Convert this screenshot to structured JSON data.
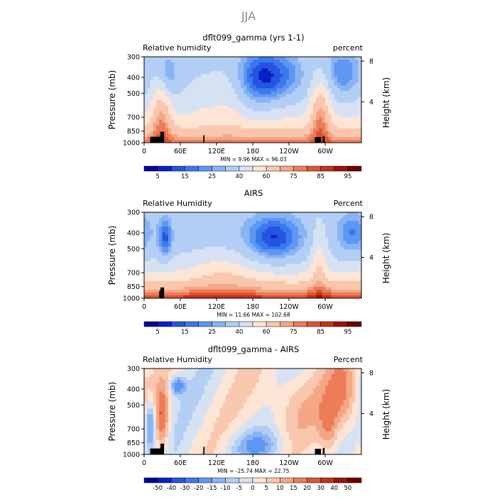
{
  "figure": {
    "title": "JJA"
  },
  "colors": {
    "land_mask": "#000000",
    "rh_levels": [
      "#08009a",
      "#0a1fc8",
      "#2455e0",
      "#3a78ee",
      "#5e97f2",
      "#89b4f4",
      "#b2cef5",
      "#d6e2f3",
      "#fde5d6",
      "#f9c7ad",
      "#f3a786",
      "#ec7d58",
      "#dc5433",
      "#c43118",
      "#a01006",
      "#6e0000"
    ],
    "diff_levels": [
      "#08009a",
      "#0a1fc8",
      "#2455e0",
      "#3a78ee",
      "#5e97f2",
      "#89b4f4",
      "#b2cef5",
      "#d6e2f3",
      "#fde5d6",
      "#f9c7ad",
      "#f3a786",
      "#ec7d58",
      "#dc5433",
      "#c43118",
      "#a01006",
      "#6e0000"
    ]
  },
  "chart_data": [
    {
      "type": "heatmap",
      "title": "dflt099_gamma (yrs 1-1)",
      "left_label": "Relative humidity",
      "right_label": "percent",
      "ylabel": "Pressure (mb)",
      "ylabel2": "Height (km)",
      "yticks": [
        "300",
        "400",
        "500",
        "700",
        "850",
        "1000"
      ],
      "ytick_values": [
        300,
        400,
        500,
        700,
        850,
        1000
      ],
      "yticks2": [
        "8",
        "4"
      ],
      "ytick2_values": [
        8,
        4
      ],
      "xticks": [
        "0",
        "60E",
        "120E",
        "180",
        "120W",
        "60W"
      ],
      "xtick_values": [
        0,
        60,
        120,
        180,
        240,
        300
      ],
      "xlim": [
        0,
        360
      ],
      "ylim": [
        1000,
        300
      ],
      "stats": "MIN =    9.96   MAX =   96.03",
      "colorbar_labels": [
        "5",
        "15",
        "25",
        "40",
        "60",
        "75",
        "85",
        "95"
      ],
      "colorbar_levels": [
        "rh"
      ]
    },
    {
      "type": "heatmap",
      "title": "AIRS",
      "left_label": "Relative Humidity",
      "right_label": "Percent",
      "ylabel": "Pressure (mb)",
      "ylabel2": "Height (km)",
      "yticks": [
        "300",
        "400",
        "500",
        "700",
        "850",
        "1000"
      ],
      "ytick_values": [
        300,
        400,
        500,
        700,
        850,
        1000
      ],
      "yticks2": [
        "8",
        "4"
      ],
      "ytick2_values": [
        8,
        4
      ],
      "xticks": [
        "0",
        "60E",
        "120E",
        "180",
        "120W",
        "60W"
      ],
      "xtick_values": [
        0,
        60,
        120,
        180,
        240,
        300
      ],
      "xlim": [
        0,
        360
      ],
      "ylim": [
        1000,
        300
      ],
      "stats": "MIN =   11.66   MAX = 102.68",
      "colorbar_labels": [
        "5",
        "15",
        "25",
        "40",
        "60",
        "75",
        "85",
        "95"
      ],
      "colorbar_levels": [
        "rh"
      ]
    },
    {
      "type": "heatmap",
      "title": "dflt099_gamma - AIRS",
      "left_label": "Relative Humidity",
      "right_label": "Percent",
      "ylabel": "Pressure (mb)",
      "ylabel2": "Height (km)",
      "yticks": [
        "300",
        "400",
        "500",
        "700",
        "850",
        "1000"
      ],
      "ytick_values": [
        300,
        400,
        500,
        700,
        850,
        1000
      ],
      "yticks2": [
        "8",
        "4"
      ],
      "ytick2_values": [
        8,
        4
      ],
      "xticks": [
        "0",
        "60E",
        "120E",
        "180",
        "120W",
        "60W"
      ],
      "xtick_values": [
        0,
        60,
        120,
        180,
        240,
        300
      ],
      "xlim": [
        0,
        360
      ],
      "ylim": [
        1000,
        300
      ],
      "stats": "MIN =  -25.74   MAX =    22.75",
      "colorbar_labels": [
        "-50",
        "-40",
        "-30",
        "-20",
        "-15",
        "-10",
        "-5",
        "0",
        "5",
        "10",
        "15",
        "20",
        "30",
        "40",
        "50"
      ],
      "colorbar_levels": [
        "diff"
      ]
    }
  ]
}
